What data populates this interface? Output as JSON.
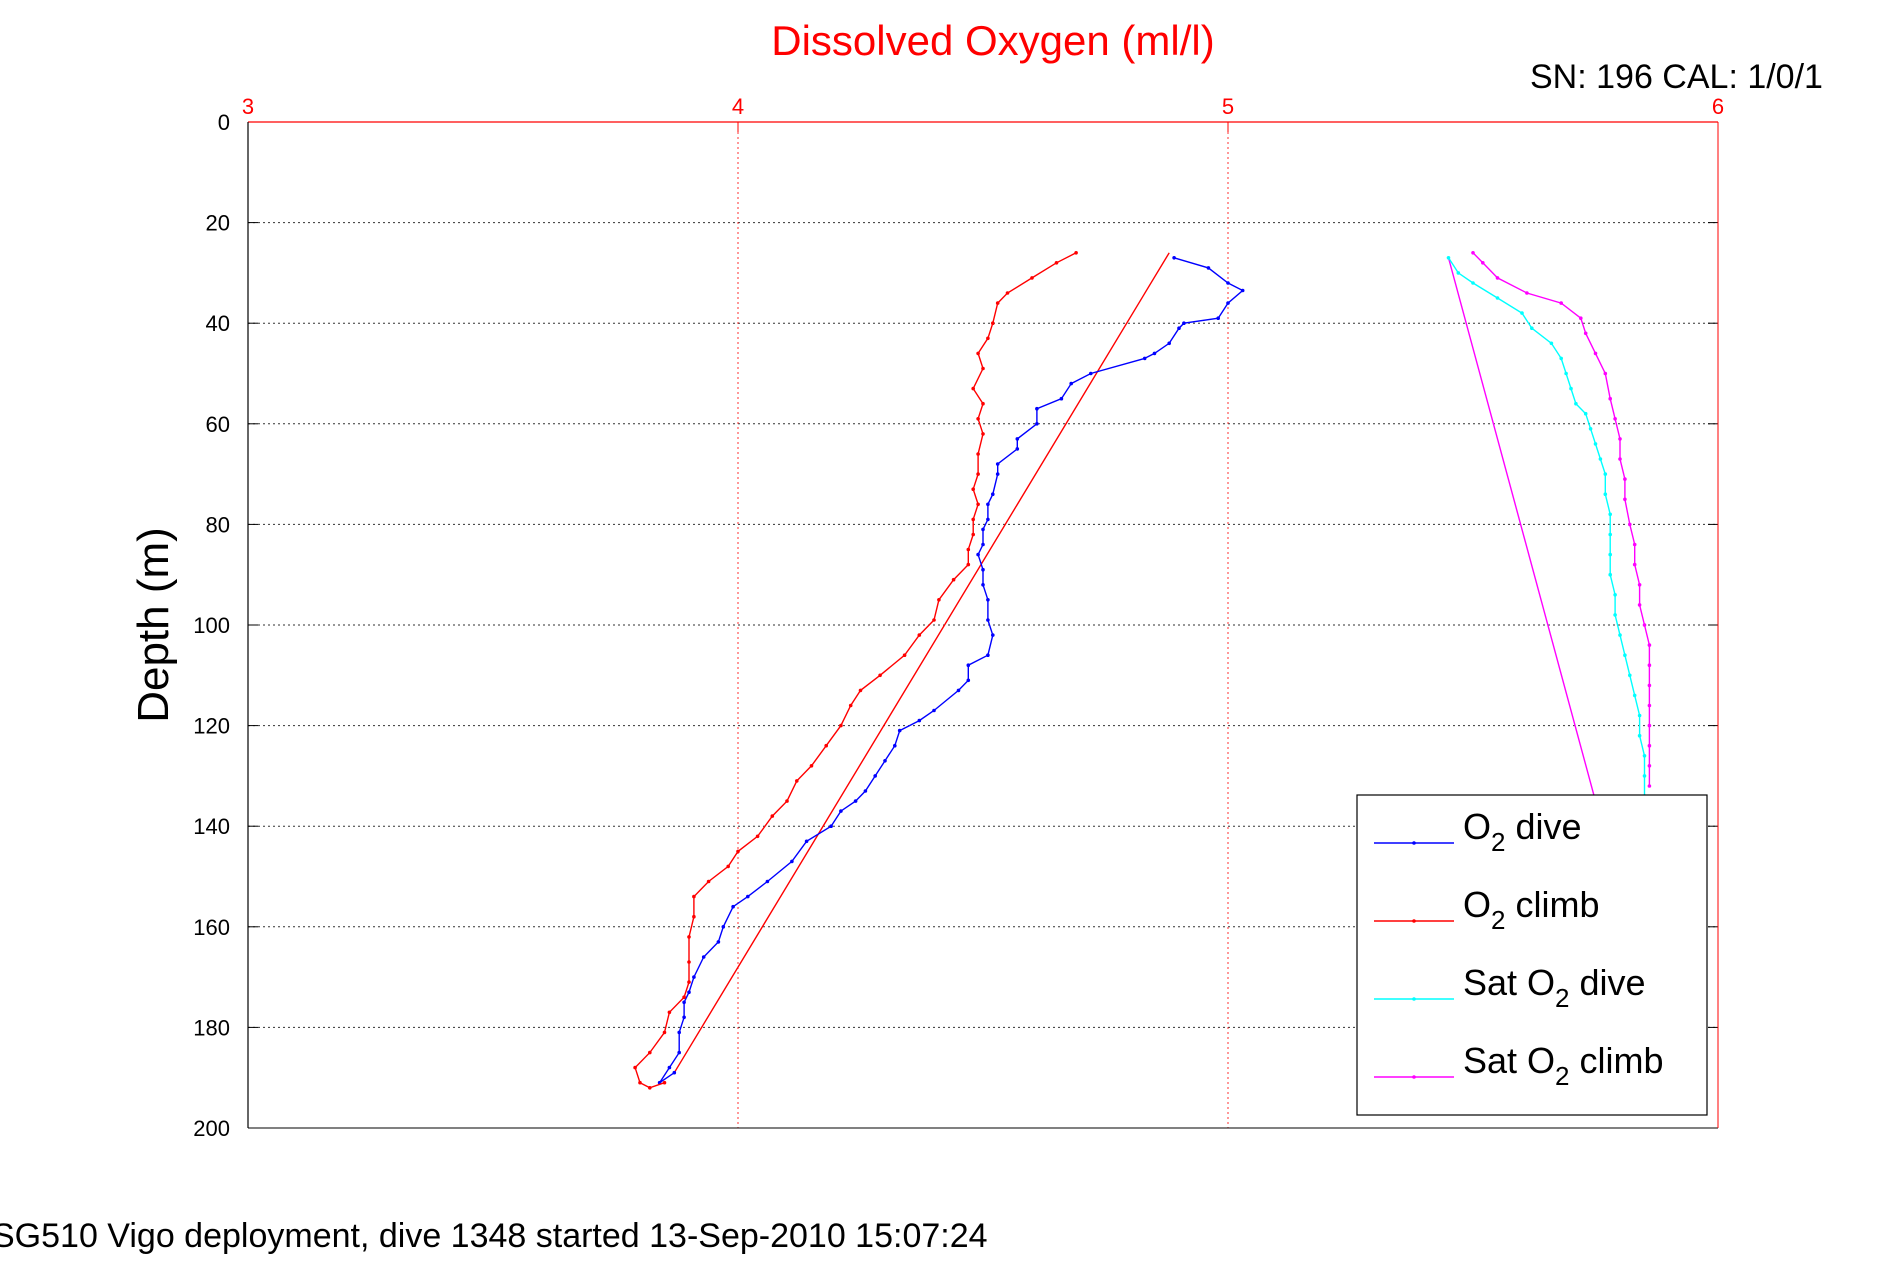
{
  "chart_data": {
    "type": "line",
    "title": "Dissolved Oxygen (ml/l)",
    "serial_label": "SN: 196  CAL: 1/0/1",
    "ylabel": "Depth (m)",
    "footer": "SG510 Vigo deployment, dive 1348 started 13-Sep-2010 15:07:24",
    "xlim": [
      3,
      6
    ],
    "ylim": [
      0,
      200
    ],
    "y_reversed": true,
    "x_axis_position": "top",
    "x_ticks": [
      "3",
      "4",
      "5",
      "6"
    ],
    "y_ticks": [
      "0",
      "20",
      "40",
      "60",
      "80",
      "100",
      "120",
      "140",
      "160",
      "180",
      "200"
    ],
    "grid": true,
    "legend_position": "bottom-right",
    "colors": {
      "title": "#ff0000",
      "x_axis": "#ff0000",
      "y_axis": "#000000"
    },
    "series": [
      {
        "name": "O2 dive",
        "legend": {
          "base": "O",
          "sub": "2",
          "tail": " dive"
        },
        "color": "#0000ff",
        "markers": true,
        "points": [
          [
            4.89,
            27
          ],
          [
            4.96,
            29
          ],
          [
            5.0,
            32
          ],
          [
            5.03,
            33.5
          ],
          [
            5.0,
            36
          ],
          [
            4.98,
            39
          ],
          [
            4.91,
            40
          ],
          [
            4.9,
            41
          ],
          [
            4.88,
            44
          ],
          [
            4.85,
            46
          ],
          [
            4.83,
            47
          ],
          [
            4.72,
            50
          ],
          [
            4.68,
            52
          ],
          [
            4.66,
            55
          ],
          [
            4.61,
            57
          ],
          [
            4.61,
            60
          ],
          [
            4.57,
            63
          ],
          [
            4.57,
            65
          ],
          [
            4.53,
            68
          ],
          [
            4.53,
            70
          ],
          [
            4.52,
            74
          ],
          [
            4.51,
            76
          ],
          [
            4.51,
            79
          ],
          [
            4.5,
            81
          ],
          [
            4.5,
            84
          ],
          [
            4.49,
            86
          ],
          [
            4.5,
            89
          ],
          [
            4.5,
            92
          ],
          [
            4.51,
            95
          ],
          [
            4.51,
            99
          ],
          [
            4.52,
            102
          ],
          [
            4.51,
            106
          ],
          [
            4.47,
            108
          ],
          [
            4.47,
            111
          ],
          [
            4.45,
            113
          ],
          [
            4.4,
            117
          ],
          [
            4.37,
            119
          ],
          [
            4.33,
            121
          ],
          [
            4.32,
            124
          ],
          [
            4.3,
            127
          ],
          [
            4.28,
            130
          ],
          [
            4.26,
            133
          ],
          [
            4.24,
            135
          ],
          [
            4.21,
            137
          ],
          [
            4.19,
            140
          ],
          [
            4.14,
            143
          ],
          [
            4.11,
            147
          ],
          [
            4.06,
            151
          ],
          [
            4.02,
            154
          ],
          [
            3.99,
            156
          ],
          [
            3.97,
            160
          ],
          [
            3.96,
            163
          ],
          [
            3.93,
            166
          ],
          [
            3.91,
            170
          ],
          [
            3.9,
            173
          ],
          [
            3.89,
            175
          ],
          [
            3.89,
            178
          ],
          [
            3.88,
            181
          ],
          [
            3.88,
            185
          ],
          [
            3.86,
            188
          ],
          [
            3.84,
            191
          ],
          [
            3.87,
            189
          ]
        ]
      },
      {
        "name": "O2 climb",
        "legend": {
          "base": "O",
          "sub": "2",
          "tail": " climb"
        },
        "color": "#ff0000",
        "markers": true,
        "points": [
          [
            4.69,
            26
          ],
          [
            4.65,
            28
          ],
          [
            4.6,
            31
          ],
          [
            4.55,
            34
          ],
          [
            4.53,
            36
          ],
          [
            4.52,
            40
          ],
          [
            4.51,
            43
          ],
          [
            4.49,
            46
          ],
          [
            4.5,
            49
          ],
          [
            4.48,
            53
          ],
          [
            4.5,
            56
          ],
          [
            4.49,
            59
          ],
          [
            4.5,
            62
          ],
          [
            4.49,
            66
          ],
          [
            4.49,
            70
          ],
          [
            4.48,
            73
          ],
          [
            4.49,
            76
          ],
          [
            4.48,
            79
          ],
          [
            4.48,
            82
          ],
          [
            4.47,
            85
          ],
          [
            4.47,
            88
          ],
          [
            4.44,
            91
          ],
          [
            4.41,
            95
          ],
          [
            4.4,
            99
          ],
          [
            4.37,
            102
          ],
          [
            4.34,
            106
          ],
          [
            4.29,
            110
          ],
          [
            4.25,
            113
          ],
          [
            4.23,
            116
          ],
          [
            4.21,
            120
          ],
          [
            4.18,
            124
          ],
          [
            4.15,
            128
          ],
          [
            4.12,
            131
          ],
          [
            4.1,
            135
          ],
          [
            4.07,
            138
          ],
          [
            4.04,
            142
          ],
          [
            4.0,
            145
          ],
          [
            3.98,
            148
          ],
          [
            3.94,
            151
          ],
          [
            3.91,
            154
          ],
          [
            3.91,
            158
          ],
          [
            3.9,
            162
          ],
          [
            3.9,
            167
          ],
          [
            3.9,
            171
          ],
          [
            3.89,
            174
          ],
          [
            3.86,
            177
          ],
          [
            3.85,
            181
          ],
          [
            3.82,
            185
          ],
          [
            3.79,
            188
          ],
          [
            3.8,
            191
          ],
          [
            3.82,
            192
          ],
          [
            3.85,
            191
          ]
        ]
      },
      {
        "name": "Sat O2 dive",
        "legend": {
          "base": "Sat O",
          "sub": "2",
          "tail": " dive"
        },
        "color": "#00ffff",
        "markers": true,
        "points": [
          [
            5.45,
            27
          ],
          [
            5.47,
            30
          ],
          [
            5.5,
            32
          ],
          [
            5.55,
            35
          ],
          [
            5.6,
            38
          ],
          [
            5.62,
            41
          ],
          [
            5.66,
            44
          ],
          [
            5.68,
            47
          ],
          [
            5.69,
            50
          ],
          [
            5.7,
            53
          ],
          [
            5.71,
            56
          ],
          [
            5.73,
            58
          ],
          [
            5.74,
            61
          ],
          [
            5.75,
            64
          ],
          [
            5.76,
            67
          ],
          [
            5.77,
            70
          ],
          [
            5.77,
            74
          ],
          [
            5.78,
            78
          ],
          [
            5.78,
            82
          ],
          [
            5.78,
            86
          ],
          [
            5.78,
            90
          ],
          [
            5.79,
            94
          ],
          [
            5.79,
            98
          ],
          [
            5.8,
            102
          ],
          [
            5.81,
            106
          ],
          [
            5.82,
            110
          ],
          [
            5.83,
            114
          ],
          [
            5.84,
            118
          ],
          [
            5.84,
            122
          ],
          [
            5.85,
            126
          ],
          [
            5.85,
            130
          ],
          [
            5.85,
            134
          ]
        ]
      },
      {
        "name": "Sat O2 climb",
        "legend": {
          "base": "Sat O",
          "sub": "2",
          "tail": " climb"
        },
        "color": "#ff00ff",
        "markers": true,
        "points": [
          [
            5.5,
            26
          ],
          [
            5.52,
            28
          ],
          [
            5.55,
            31
          ],
          [
            5.61,
            34
          ],
          [
            5.68,
            36
          ],
          [
            5.72,
            39
          ],
          [
            5.73,
            42
          ],
          [
            5.75,
            46
          ],
          [
            5.77,
            50
          ],
          [
            5.78,
            55
          ],
          [
            5.79,
            59
          ],
          [
            5.8,
            63
          ],
          [
            5.8,
            67
          ],
          [
            5.81,
            71
          ],
          [
            5.81,
            75
          ],
          [
            5.82,
            80
          ],
          [
            5.83,
            84
          ],
          [
            5.83,
            88
          ],
          [
            5.84,
            92
          ],
          [
            5.84,
            96
          ],
          [
            5.85,
            100
          ],
          [
            5.86,
            104
          ],
          [
            5.86,
            108
          ],
          [
            5.86,
            112
          ],
          [
            5.86,
            116
          ],
          [
            5.86,
            120
          ],
          [
            5.86,
            124
          ],
          [
            5.86,
            128
          ],
          [
            5.86,
            132
          ]
        ]
      }
    ],
    "extra_lines": [
      {
        "color": "#ff0000",
        "points": [
          [
            4.88,
            26
          ],
          [
            3.87,
            189
          ]
        ]
      },
      {
        "color": "#ff00ff",
        "points": [
          [
            5.45,
            27
          ],
          [
            5.75,
            135
          ]
        ]
      }
    ]
  }
}
